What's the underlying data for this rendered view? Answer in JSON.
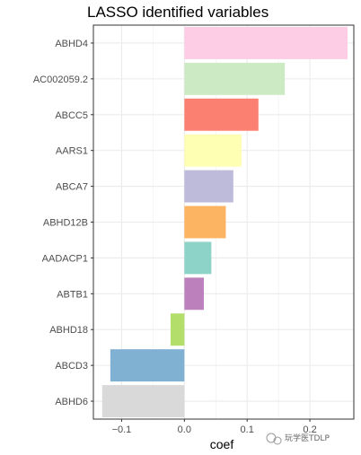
{
  "chart_data": {
    "type": "bar",
    "orientation": "horizontal",
    "title": "LASSO identified variables",
    "xlabel": "coef",
    "ylabel": "",
    "categories": [
      "ABHD4",
      "AC002059.2",
      "ABCC5",
      "AARS1",
      "ABCA7",
      "ABHD12B",
      "AADACP1",
      "ABTB1",
      "ABHD18",
      "ABCD3",
      "ABHD6"
    ],
    "values": [
      0.26,
      0.16,
      0.118,
      0.091,
      0.078,
      0.066,
      0.043,
      0.031,
      -0.022,
      -0.118,
      -0.131
    ],
    "colors": [
      "#FCCDE5",
      "#CCEBC5",
      "#FB8072",
      "#FFFFB3",
      "#BEBADA",
      "#FDB462",
      "#8DD3C7",
      "#BC80BD",
      "#B3DE69",
      "#80B1D3",
      "#D9D9D9"
    ],
    "xlim": [
      -0.145,
      0.27
    ],
    "xticks": [
      -0.1,
      0.0,
      0.1,
      0.2
    ],
    "xtick_labels": [
      "−0.1",
      "0.0",
      "0.1",
      "0.2"
    ],
    "grid": true,
    "legend": "none"
  },
  "watermark": "玩学医TDLP"
}
